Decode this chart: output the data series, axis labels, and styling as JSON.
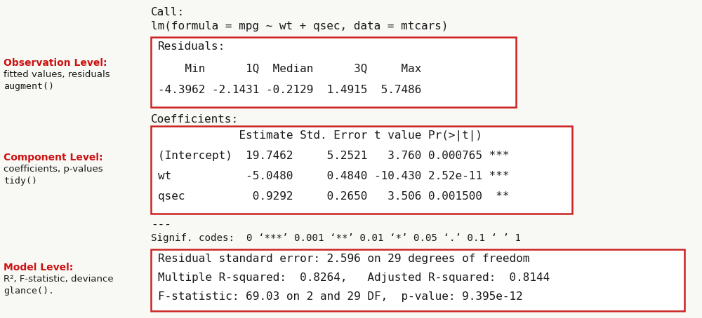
{
  "bg_color": "#f8f8f5",
  "red_color": "#cc1111",
  "dark_color": "#1a1a1a",
  "white": "#ffffff",
  "box_edge": "#cc2222",
  "call_line1": "Call:",
  "call_line2": "lm(formula = mpg ~ wt + qsec, data = mtcars)",
  "obs_label1": "Observation Level:",
  "obs_label2": "fitted values, residuals",
  "obs_label3": "augment()",
  "comp_label1": "Component Level:",
  "comp_label2": "coefficients, p-values",
  "comp_label3": "tidy()",
  "model_label1": "Model Level:",
  "model_label2": "R², F-statistic, deviance",
  "model_label3": "glance().",
  "box1_lines": [
    "Residuals:",
    "    Min      1Q  Median      3Q     Max",
    "-4.3962 -2.1431 -0.2129  1.4915  5.7486"
  ],
  "coeff_header": "Coefficients:",
  "box2_lines": [
    "            Estimate Std. Error t value Pr(>|t|)    ",
    "(Intercept)  19.7462     5.2521   3.760 0.000765 ***",
    "wt           -5.0480     0.4840 -10.430 2.52e-11 ***",
    "qsec          0.9292     0.2650   3.506 0.001500  **"
  ],
  "signif_line1": "---",
  "signif_line2": "Signif. codes:  0 ‘***’ 0.001 ‘**’ 0.01 ‘*’ 0.05 ‘.’ 0.1 ‘ ’ 1",
  "box3_lines": [
    "Residual standard error: 2.596 on 29 degrees of freedom",
    "Multiple R-squared:  0.8264,   Adjusted R-squared:  0.8144",
    "F-statistic: 69.03 on 2 and 29 DF,  p-value: 9.395e-12"
  ],
  "figw": 10.0,
  "figh": 4.54,
  "dpi": 100
}
